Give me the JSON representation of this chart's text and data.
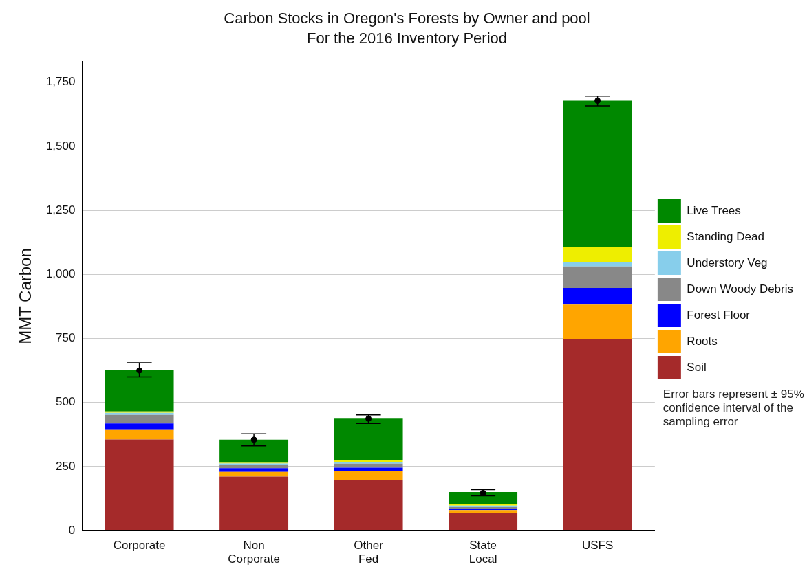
{
  "chart_data": {
    "type": "bar",
    "title": "Carbon Stocks in Oregon's Forests by Owner and pool",
    "subtitle": "For the 2016 Inventory Period",
    "ylabel": "MMT Carbon",
    "categories": [
      "Corporate",
      "Non Corporate",
      "Other Fed",
      "State Local",
      "USFS"
    ],
    "stacked": true,
    "grid": "y",
    "legend": "right",
    "ylim": [
      0,
      1830
    ],
    "yticks": [
      0,
      250,
      500,
      750,
      {
        "value": 1000,
        "label": "1,000"
      },
      {
        "value": 1250,
        "label": "1,250"
      },
      {
        "value": 1500,
        "label": "1,500"
      },
      {
        "value": 1750,
        "label": "1,750"
      }
    ],
    "annotations": [
      "Error bars represent ± 95% confidence interval of the sampling error"
    ],
    "series": [
      {
        "name": "Soil",
        "color": "#a52a2a",
        "values": [
          356,
          211,
          196,
          69,
          749
        ]
      },
      {
        "name": "Roots",
        "color": "#ffa500",
        "values": [
          37,
          18,
          35,
          11,
          133
        ]
      },
      {
        "name": "Forest Floor",
        "color": "#0000ff",
        "values": [
          25,
          15,
          15,
          4,
          65
        ]
      },
      {
        "name": "Down Woody Debris",
        "color": "#888888",
        "values": [
          34,
          13,
          15,
          8,
          84
        ]
      },
      {
        "name": "Understory Veg",
        "color": "#87ceeb",
        "values": [
          8,
          5,
          8,
          6,
          16
        ]
      },
      {
        "name": "Standing Dead",
        "color": "#eeee00",
        "values": [
          5,
          3,
          6,
          6,
          59
        ]
      },
      {
        "name": "Live Trees",
        "color": "#008800",
        "values": [
          163,
          90,
          162,
          47,
          572
        ]
      },
      {
        "type": "scatter",
        "color": "#000000",
        "marker": "circle",
        "values": [
          625,
          355,
          437,
          147,
          1678
        ],
        "errors": [
          [
            600,
            655
          ],
          [
            331,
            378
          ],
          [
            418,
            452
          ],
          [
            136,
            160
          ],
          [
            1658,
            1696
          ]
        ]
      }
    ]
  }
}
